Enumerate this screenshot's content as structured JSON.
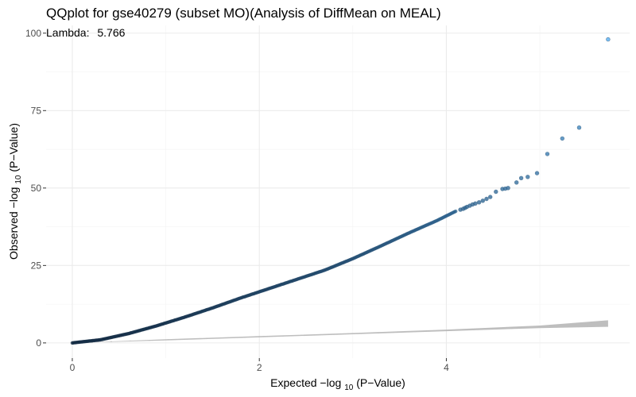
{
  "chart_data": {
    "type": "scatter",
    "title": "QQplot for gse40279 (subset MO)(Analysis of DiffMean on MEAL)",
    "annotation": {
      "label": "Lambda:",
      "value": "5.766",
      "position": "top-left"
    },
    "xlabel": {
      "prefix": "Expected  −log",
      "subscript": "10",
      "suffix": "(P−Value)"
    },
    "ylabel": {
      "prefix": "Observed  −log",
      "subscript": "10",
      "suffix": "(P−Value)"
    },
    "xlim": [
      -0.28,
      5.96
    ],
    "ylim": [
      -4.9,
      102.5
    ],
    "xticks": [
      0,
      2,
      4
    ],
    "xtick_labels": [
      "0",
      "2",
      "4"
    ],
    "yticks": [
      0,
      25,
      50,
      75,
      100
    ],
    "ytick_labels": [
      "0",
      "25",
      "50",
      "75",
      "100"
    ],
    "grid": true,
    "colors": {
      "points_low": "#132b43",
      "points_high": "#56b1f7",
      "band": "#b3b3b3",
      "expected_line": "#bdbdbd",
      "grid_major": "#ebebeb",
      "grid_minor": "#f3f3f3",
      "axis_text": "#4d4d4d"
    },
    "series": [
      {
        "name": "observed",
        "curve": {
          "x": [
            0,
            0.3,
            0.6,
            0.9,
            1.2,
            1.5,
            1.8,
            2.1,
            2.4,
            2.7,
            3.0,
            3.3,
            3.6,
            3.9,
            4.1
          ],
          "y": [
            0,
            1.0,
            3.0,
            5.5,
            8.3,
            11.3,
            14.5,
            17.5,
            20.5,
            23.5,
            27.2,
            31.3,
            35.5,
            39.5,
            42.5
          ]
        },
        "tail_points": [
          {
            "x": 4.15,
            "y": 43.0
          },
          {
            "x": 4.18,
            "y": 43.3
          },
          {
            "x": 4.2,
            "y": 43.6
          },
          {
            "x": 4.22,
            "y": 43.9
          },
          {
            "x": 4.25,
            "y": 44.3
          },
          {
            "x": 4.28,
            "y": 44.7
          },
          {
            "x": 4.31,
            "y": 45.0
          },
          {
            "x": 4.35,
            "y": 45.4
          },
          {
            "x": 4.39,
            "y": 45.9
          },
          {
            "x": 4.43,
            "y": 46.5
          },
          {
            "x": 4.47,
            "y": 47.1
          },
          {
            "x": 4.53,
            "y": 48.8
          },
          {
            "x": 4.6,
            "y": 49.7
          },
          {
            "x": 4.63,
            "y": 49.8
          },
          {
            "x": 4.66,
            "y": 50.0
          },
          {
            "x": 4.75,
            "y": 51.8
          },
          {
            "x": 4.8,
            "y": 53.2
          },
          {
            "x": 4.87,
            "y": 53.6
          },
          {
            "x": 4.97,
            "y": 54.8
          },
          {
            "x": 5.08,
            "y": 61.0
          },
          {
            "x": 5.24,
            "y": 66.0
          },
          {
            "x": 5.42,
            "y": 69.5
          },
          {
            "x": 5.73,
            "y": 98.0
          }
        ]
      },
      {
        "name": "expected",
        "confidence_band": {
          "x": [
            0,
            1,
            2,
            3,
            4,
            5,
            5.73
          ],
          "lower": [
            0,
            0.8,
            1.8,
            2.8,
            3.8,
            4.8,
            5.2
          ],
          "upper": [
            0,
            1.2,
            2.2,
            3.2,
            4.3,
            5.6,
            7.3
          ]
        }
      }
    ]
  }
}
